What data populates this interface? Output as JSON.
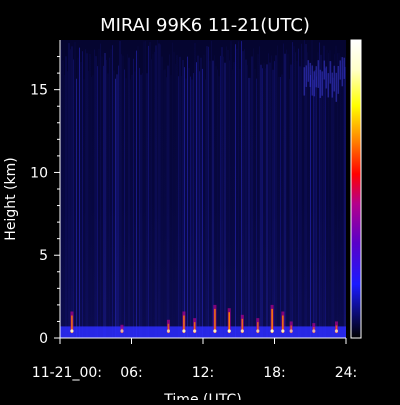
{
  "chart_data": {
    "type": "heatmap",
    "title": "MIRAI 99K6 11-21(UTC)",
    "xlabel": "Time (UTC)",
    "ylabel": "Height (km)",
    "xlim": [
      0,
      24
    ],
    "ylim": [
      0,
      18
    ],
    "x_ticks": [
      {
        "value": 0,
        "label": "11-21_00:"
      },
      {
        "value": 6,
        "label": "06:"
      },
      {
        "value": 12,
        "label": "12:"
      },
      {
        "value": 18,
        "label": "18:"
      },
      {
        "value": 24,
        "label": "24:"
      }
    ],
    "y_ticks": [
      {
        "value": 0,
        "label": "0"
      },
      {
        "value": 5,
        "label": "5"
      },
      {
        "value": 10,
        "label": "10"
      },
      {
        "value": 15,
        "label": "15"
      }
    ],
    "colorscale": [
      "#000000",
      "#1a1aff",
      "#5a00c8",
      "#b4008c",
      "#ff0000",
      "#ff8000",
      "#ffff00",
      "#ffffc8",
      "#ffffff"
    ],
    "colorbar_labels": [],
    "background": "dark-navy",
    "surface_echo_height_km": [
      0,
      0.7
    ],
    "intense_echo_events": [
      {
        "t": 1.0,
        "top": 1.6,
        "intensity": 0.9
      },
      {
        "t": 5.2,
        "top": 0.8,
        "intensity": 0.6
      },
      {
        "t": 9.1,
        "top": 1.1,
        "intensity": 0.7
      },
      {
        "t": 10.4,
        "top": 1.6,
        "intensity": 0.9
      },
      {
        "t": 11.3,
        "top": 1.2,
        "intensity": 0.8
      },
      {
        "t": 13.0,
        "top": 2.0,
        "intensity": 0.9
      },
      {
        "t": 14.2,
        "top": 1.8,
        "intensity": 1.0
      },
      {
        "t": 15.3,
        "top": 1.4,
        "intensity": 0.8
      },
      {
        "t": 16.6,
        "top": 1.2,
        "intensity": 0.7
      },
      {
        "t": 17.8,
        "top": 2.0,
        "intensity": 1.0
      },
      {
        "t": 18.7,
        "top": 1.6,
        "intensity": 0.9
      },
      {
        "t": 19.4,
        "top": 1.0,
        "intensity": 0.6
      },
      {
        "t": 21.3,
        "top": 0.9,
        "intensity": 0.6
      },
      {
        "t": 23.2,
        "top": 1.0,
        "intensity": 0.7
      }
    ]
  }
}
